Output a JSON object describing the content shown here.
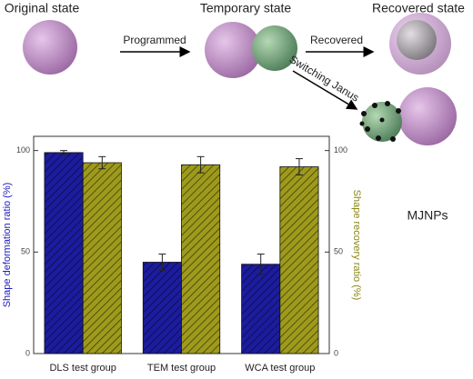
{
  "diagram": {
    "states": [
      "Original  state",
      "Temporary state",
      "Recovered  state"
    ],
    "arrows": [
      "Programmed",
      "Recovered",
      "Switching Janus"
    ],
    "product": "MJNPs"
  },
  "chart_data": {
    "type": "bar",
    "categories": [
      "DLS test group",
      "TEM test group",
      "WCA test group"
    ],
    "series": [
      {
        "color": "#1c1c9e",
        "values": [
          99,
          45,
          44
        ],
        "errors": [
          1,
          4,
          5
        ]
      },
      {
        "color": "#9e9a1c",
        "values": [
          94,
          93,
          92
        ],
        "errors": [
          3,
          4,
          4
        ],
        "axis": "y2"
      }
    ],
    "y_label": "Shape deformation ratio (%)",
    "y2_label": "Shape recovery ratio (%)",
    "ylim": [
      0,
      107
    ],
    "yticks": [
      0,
      50,
      100
    ],
    "y2lim": [
      0,
      107
    ],
    "y2ticks": [
      0,
      50,
      100
    ]
  }
}
